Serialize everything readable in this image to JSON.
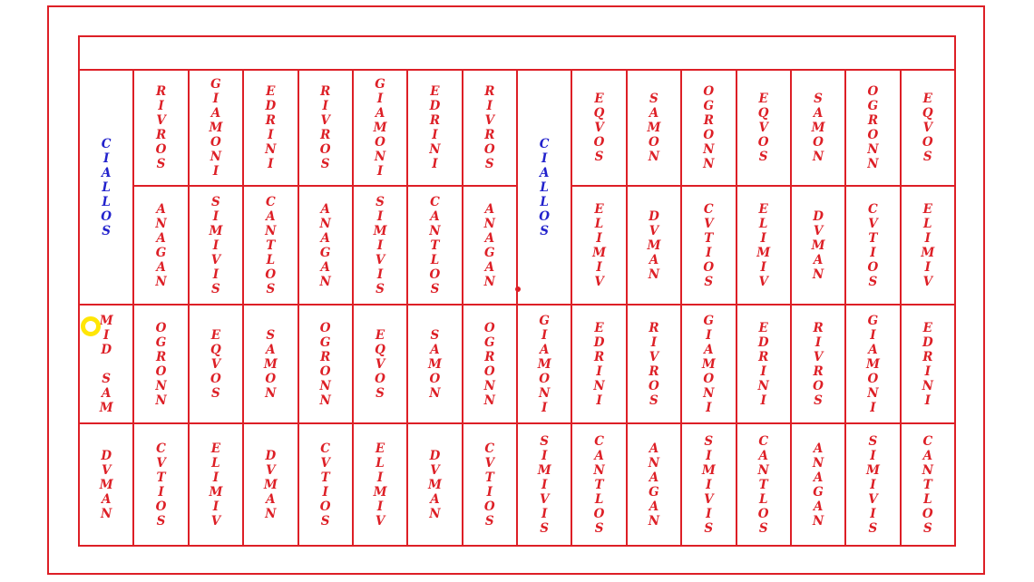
{
  "colors": {
    "red": "#dd1f26",
    "blue": "#2222cc",
    "yellow": "#ffe606"
  },
  "calendar": {
    "col1": {
      "top": "CIALLOS",
      "r3": "MID SAM",
      "r4": "DVMAN"
    },
    "col2": {
      "r1": "RIVROS",
      "r2": "ANAGAN",
      "r3": "OGRONN",
      "r4": "CVTIOS"
    },
    "col3": {
      "r1": "GIAMONI",
      "r2": "SIMIVIS",
      "r3": "EQVOS",
      "r4": "ELIMIV"
    },
    "col4": {
      "r1": "EDRINI",
      "r2": "CANTLOS",
      "r3": "SAMON",
      "r4": "DVMAN"
    },
    "col5": {
      "r1": "RIVROS",
      "r2": "ANAGAN",
      "r3": "OGRONN",
      "r4": "CVTIOS"
    },
    "col6": {
      "r1": "GIAMONI",
      "r2": "SIMIVIS",
      "r3": "EQVOS",
      "r4": "ELIMIV"
    },
    "col7": {
      "r1": "EDRINI",
      "r2": "CANTLOS",
      "r3": "SAMON",
      "r4": "DVMAN"
    },
    "col8": {
      "r1": "RIVROS",
      "r2": "ANAGAN",
      "r3": "OGRONN",
      "r4": "CVTIOS"
    },
    "col9": {
      "top": "CIALLOS",
      "r3": "GIAMONI",
      "r4": "SIMIVIS"
    },
    "col10": {
      "r1": "EQVOS",
      "r2": "ELIMIV",
      "r3": "EDRINI",
      "r4": "CANTLOS"
    },
    "col11": {
      "r1": "SAMON",
      "r2": "DVMAN",
      "r3": "RIVROS",
      "r4": "ANAGAN"
    },
    "col12": {
      "r1": "OGRONN",
      "r2": "CVTIOS",
      "r3": "GIAMONI",
      "r4": "SIMIVIS"
    },
    "col13": {
      "r1": "EQVOS",
      "r2": "ELIMIV",
      "r3": "EDRINI",
      "r4": "CANTLOS"
    },
    "col14": {
      "r1": "SAMON",
      "r2": "DVMAN",
      "r3": "RIVROS",
      "r4": "ANAGAN"
    },
    "col15": {
      "r1": "OGRONN",
      "r2": "CVTIOS",
      "r3": "GIAMONI",
      "r4": "SIMIVIS"
    },
    "col16": {
      "r1": "EQVOS",
      "r2": "ELIMIV",
      "r3": "EDRINI",
      "r4": "CANTLOS"
    }
  }
}
